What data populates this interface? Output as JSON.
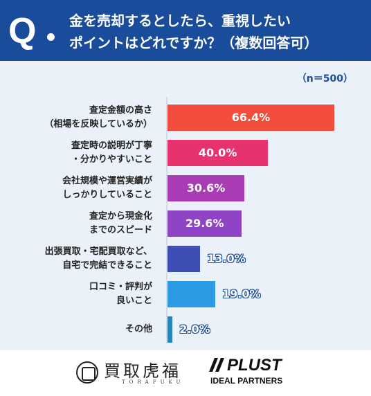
{
  "header": {
    "q_mark": "Q",
    "question_line1": "金を売却するとしたら、重視したい",
    "question_line2": "ポイントはどれですか？（複数回答可）"
  },
  "sample_label": "（n＝500）",
  "chart_data": {
    "type": "bar",
    "orientation": "horizontal",
    "title": "金を売却するとしたら、重視したいポイントはどれですか？（複数回答可）",
    "note": "（n＝500）",
    "categories": [
      [
        "査定金額の高さ",
        "（相場を反映しているか）"
      ],
      [
        "査定時の説明が丁寧",
        "・分かりやすいこと"
      ],
      [
        "会社規模や運営実績が",
        "しっかりしていること"
      ],
      [
        "査定から現金化",
        "までのスピード"
      ],
      [
        "出張買取・宅配買取など、",
        "自宅で完結できること"
      ],
      [
        "口コミ・評判が",
        "良いこと"
      ],
      [
        "その他"
      ]
    ],
    "values": [
      66.4,
      40.0,
      30.6,
      29.6,
      13.0,
      19.0,
      2.0
    ],
    "value_labels": [
      "66.4%",
      "40.0%",
      "30.6%",
      "29.6%",
      "13.0%",
      "19.0%",
      "2.0%"
    ],
    "colors": [
      "#f24c3d",
      "#e6336d",
      "#a93bb4",
      "#8e44c4",
      "#3d4fb4",
      "#2d9ae6",
      "#2a84bb"
    ],
    "xlim": [
      0,
      100
    ],
    "grid": false,
    "legend": "none"
  },
  "footer": {
    "logo1_name": "買取虎福",
    "logo1_roman": "TORAFUKU",
    "logo2_name": "PLUST",
    "logo2_sub": "IDEAL PARTNERS"
  }
}
